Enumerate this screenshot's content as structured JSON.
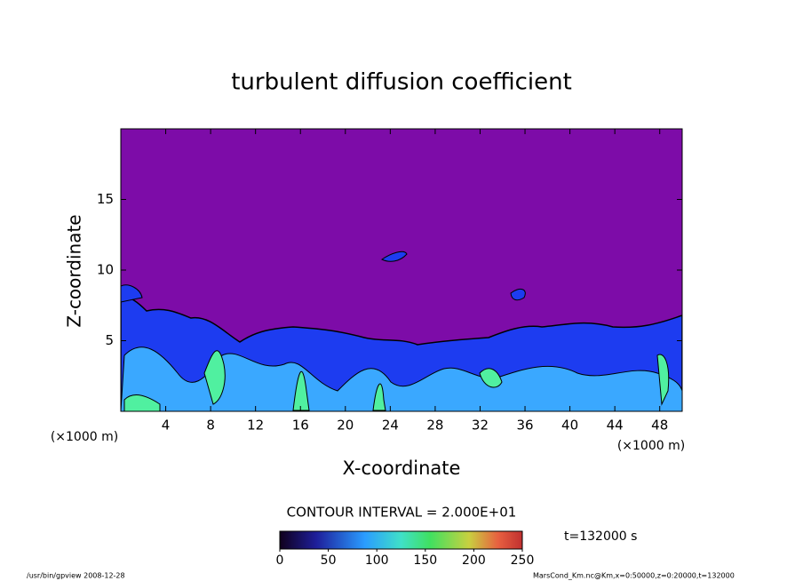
{
  "chart_data": {
    "type": "contour",
    "title": "turbulent diffusion coefficient",
    "x_label": "X-coordinate",
    "y_label": "Z-coordinate",
    "x_unit": "(×1000 m)",
    "y_unit": "(×1000 m)",
    "xlim": [
      0,
      50
    ],
    "xticks": [
      4,
      8,
      12,
      16,
      20,
      24,
      28,
      32,
      36,
      40,
      44,
      48
    ],
    "ylim": [
      0,
      20
    ],
    "yticks": [
      5,
      10,
      15
    ],
    "contour_interval": "CONTOUR INTERVAL = 2.000E+01",
    "time_label": "t=132000 s",
    "colorbar": {
      "clim": [
        0,
        250
      ],
      "ticks": [
        0,
        50,
        100,
        150,
        200,
        250
      ]
    },
    "footer_left": "/usr/bin/gpview   2008-12-28",
    "footer_right": "MarsCond_Km.nc@Km,x=0:50000,z=0:20000,t=132000"
  }
}
